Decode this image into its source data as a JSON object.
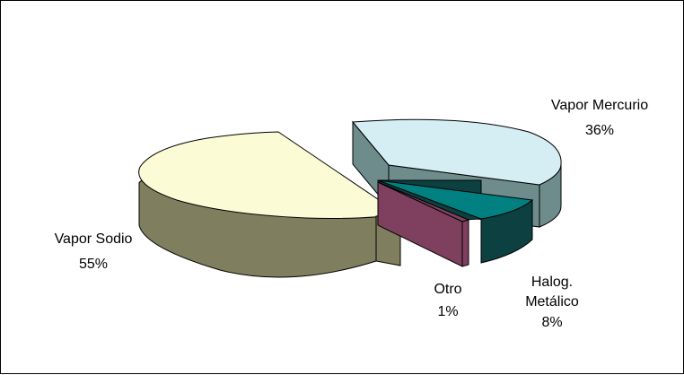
{
  "chart_data": {
    "type": "pie",
    "title": "",
    "style": "3d-exploded",
    "legend": "none",
    "slices": [
      {
        "label": "Vapor Mercurio",
        "value": 36,
        "value_label": "36%",
        "top_color": "#d4eef4",
        "side_color": "#6f8c8c"
      },
      {
        "label": "Halog. Metálico",
        "value": 8,
        "value_label": "8%",
        "top_color": "#008080",
        "side_color": "#0d4040"
      },
      {
        "label": "Otro",
        "value": 1,
        "value_label": "1%",
        "top_color": "#7f4060",
        "side_color": "#7f4060"
      },
      {
        "label": "Vapor Sodio",
        "value": 55,
        "value_label": "55%",
        "top_color": "#fbfbd5",
        "side_color": "#7f7f5f"
      }
    ]
  }
}
